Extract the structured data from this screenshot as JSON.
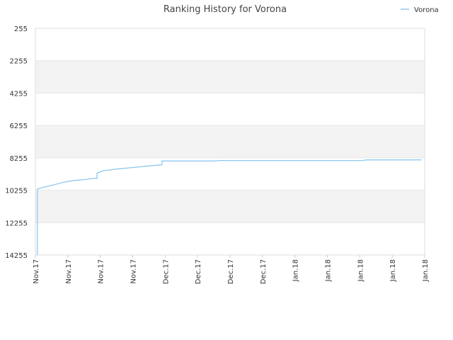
{
  "chart_data": {
    "type": "line",
    "title": "Ranking History for Vorona",
    "xlabel": "",
    "ylabel": "",
    "y_inverted": true,
    "ylim": [
      255,
      14255
    ],
    "y_ticks": [
      255,
      2255,
      4255,
      6255,
      8255,
      10255,
      12255,
      14255
    ],
    "y_tick_labels": [
      "255",
      "2255",
      "4255",
      "6255",
      "8255",
      "10255",
      "12255",
      "14255"
    ],
    "x_tick_labels": [
      "Nov.17",
      "Nov.17",
      "Nov.17",
      "Nov.17",
      "Dec.17",
      "Dec.17",
      "Dec.17",
      "Dec.17",
      "Jan.18",
      "Jan.18",
      "Jan.18",
      "Jan.18",
      "Jan.18"
    ],
    "grid": true,
    "band_colors": [
      "#f3f3f3",
      "#ffffff"
    ],
    "legend": {
      "position": "top-right",
      "entries": [
        "Vorona"
      ]
    },
    "series": [
      {
        "name": "Vorona",
        "color": "#8ec8f0",
        "points": [
          [
            0.06,
            14255
          ],
          [
            0.06,
            10200
          ],
          [
            0.1,
            10150
          ],
          [
            0.3,
            10050
          ],
          [
            0.6,
            9900
          ],
          [
            0.9,
            9750
          ],
          [
            1.2,
            9650
          ],
          [
            1.5,
            9600
          ],
          [
            1.8,
            9520
          ],
          [
            1.9,
            9520
          ],
          [
            1.9,
            9200
          ],
          [
            2.1,
            9050
          ],
          [
            2.5,
            8950
          ],
          [
            3.0,
            8850
          ],
          [
            3.5,
            8750
          ],
          [
            3.9,
            8680
          ],
          [
            3.9,
            8450
          ],
          [
            4.5,
            8450
          ],
          [
            5.5,
            8450
          ],
          [
            5.7,
            8420
          ],
          [
            7.0,
            8420
          ],
          [
            8.0,
            8420
          ],
          [
            9.0,
            8420
          ],
          [
            10.1,
            8420
          ],
          [
            10.2,
            8380
          ],
          [
            11.0,
            8380
          ],
          [
            11.9,
            8380
          ]
        ]
      }
    ]
  }
}
